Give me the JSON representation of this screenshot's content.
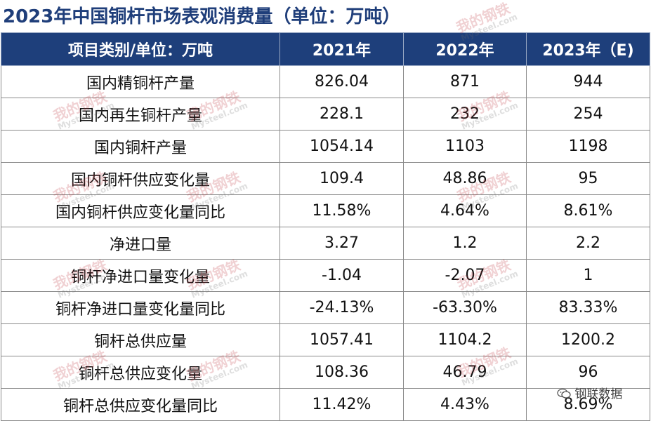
{
  "title": "2023年中国铜杆市场表观消费量（单位：万吨）",
  "table": {
    "headers": [
      "项目类别/单位：万吨",
      "2021年",
      "2022年",
      "2023年（E)"
    ],
    "rows": [
      [
        "国内精铜杆产量",
        "826.04",
        "871",
        "944"
      ],
      [
        "国内再生铜杆产量",
        "228.1",
        "232",
        "254"
      ],
      [
        "国内铜杆产量",
        "1054.14",
        "1103",
        "1198"
      ],
      [
        "国内铜杆供应变化量",
        "109.4",
        "48.86",
        "95"
      ],
      [
        "国内铜杆供应变化量同比",
        "11.58%",
        "4.64%",
        "8.61%"
      ],
      [
        "净进口量",
        "3.27",
        "1.2",
        "2.2"
      ],
      [
        "铜杆净进口量变化量",
        "-1.04",
        "-2.07",
        "1"
      ],
      [
        "铜杆净进口量变化量同比",
        "-24.13%",
        "-63.30%",
        "83.33%"
      ],
      [
        "铜杆总供应量",
        "1057.41",
        "1104.2",
        "1200.2"
      ],
      [
        "铜杆总供应变化量",
        "108.36",
        "46.79",
        "96"
      ],
      [
        "铜杆总供应变化量同比",
        "11.42%",
        "4.43%",
        "8.69%"
      ]
    ]
  },
  "watermark": {
    "logo_text": "我的钢铁",
    "site_text": "Mysteel.com"
  },
  "source_badge": {
    "text": "钢联数据",
    "icon": "wechat-icon"
  },
  "colors": {
    "header_bg": "#1e3f7b",
    "title": "#1f3e7a",
    "logo_red": "#c0313a"
  }
}
